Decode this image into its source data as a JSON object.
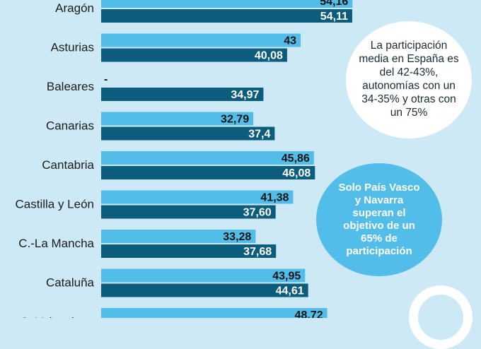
{
  "chart_data": {
    "type": "bar",
    "orientation": "horizontal",
    "categories": [
      "Aragón",
      "Asturias",
      "Baleares",
      "Canarias",
      "Cantabria",
      "Castilla y León",
      "C.-La Mancha",
      "Cataluña",
      "C. Valenciana"
    ],
    "series": [
      {
        "name": "series-1",
        "color": "#52bde8",
        "values": [
          54.16,
          43,
          null,
          32.79,
          45.86,
          41.38,
          33.28,
          43.95,
          48.72
        ],
        "labels": [
          "54,16",
          "43",
          "-",
          "32,79",
          "45,86",
          "41,38",
          "33,28",
          "43,95",
          "48,72"
        ]
      },
      {
        "name": "series-2",
        "color": "#0c5c7d",
        "values": [
          54.11,
          40.08,
          34.97,
          37.4,
          46.08,
          37.6,
          37.68,
          44.61,
          null
        ],
        "labels": [
          "54,11",
          "40,08",
          "34,97",
          "37,4",
          "46,08",
          "37,60",
          "37,68",
          "44,61",
          ""
        ]
      }
    ],
    "title": "",
    "xlabel": "",
    "ylabel": "",
    "xlim": [
      0,
      65
    ]
  },
  "annotations": {
    "bubble_1": "La participación media en España es del 42-43%, autonomías con un 34-35% y otras con un 75%",
    "bubble_2": "Solo País Vasco y Navarra superan el objetivo de un 65% de participación"
  }
}
